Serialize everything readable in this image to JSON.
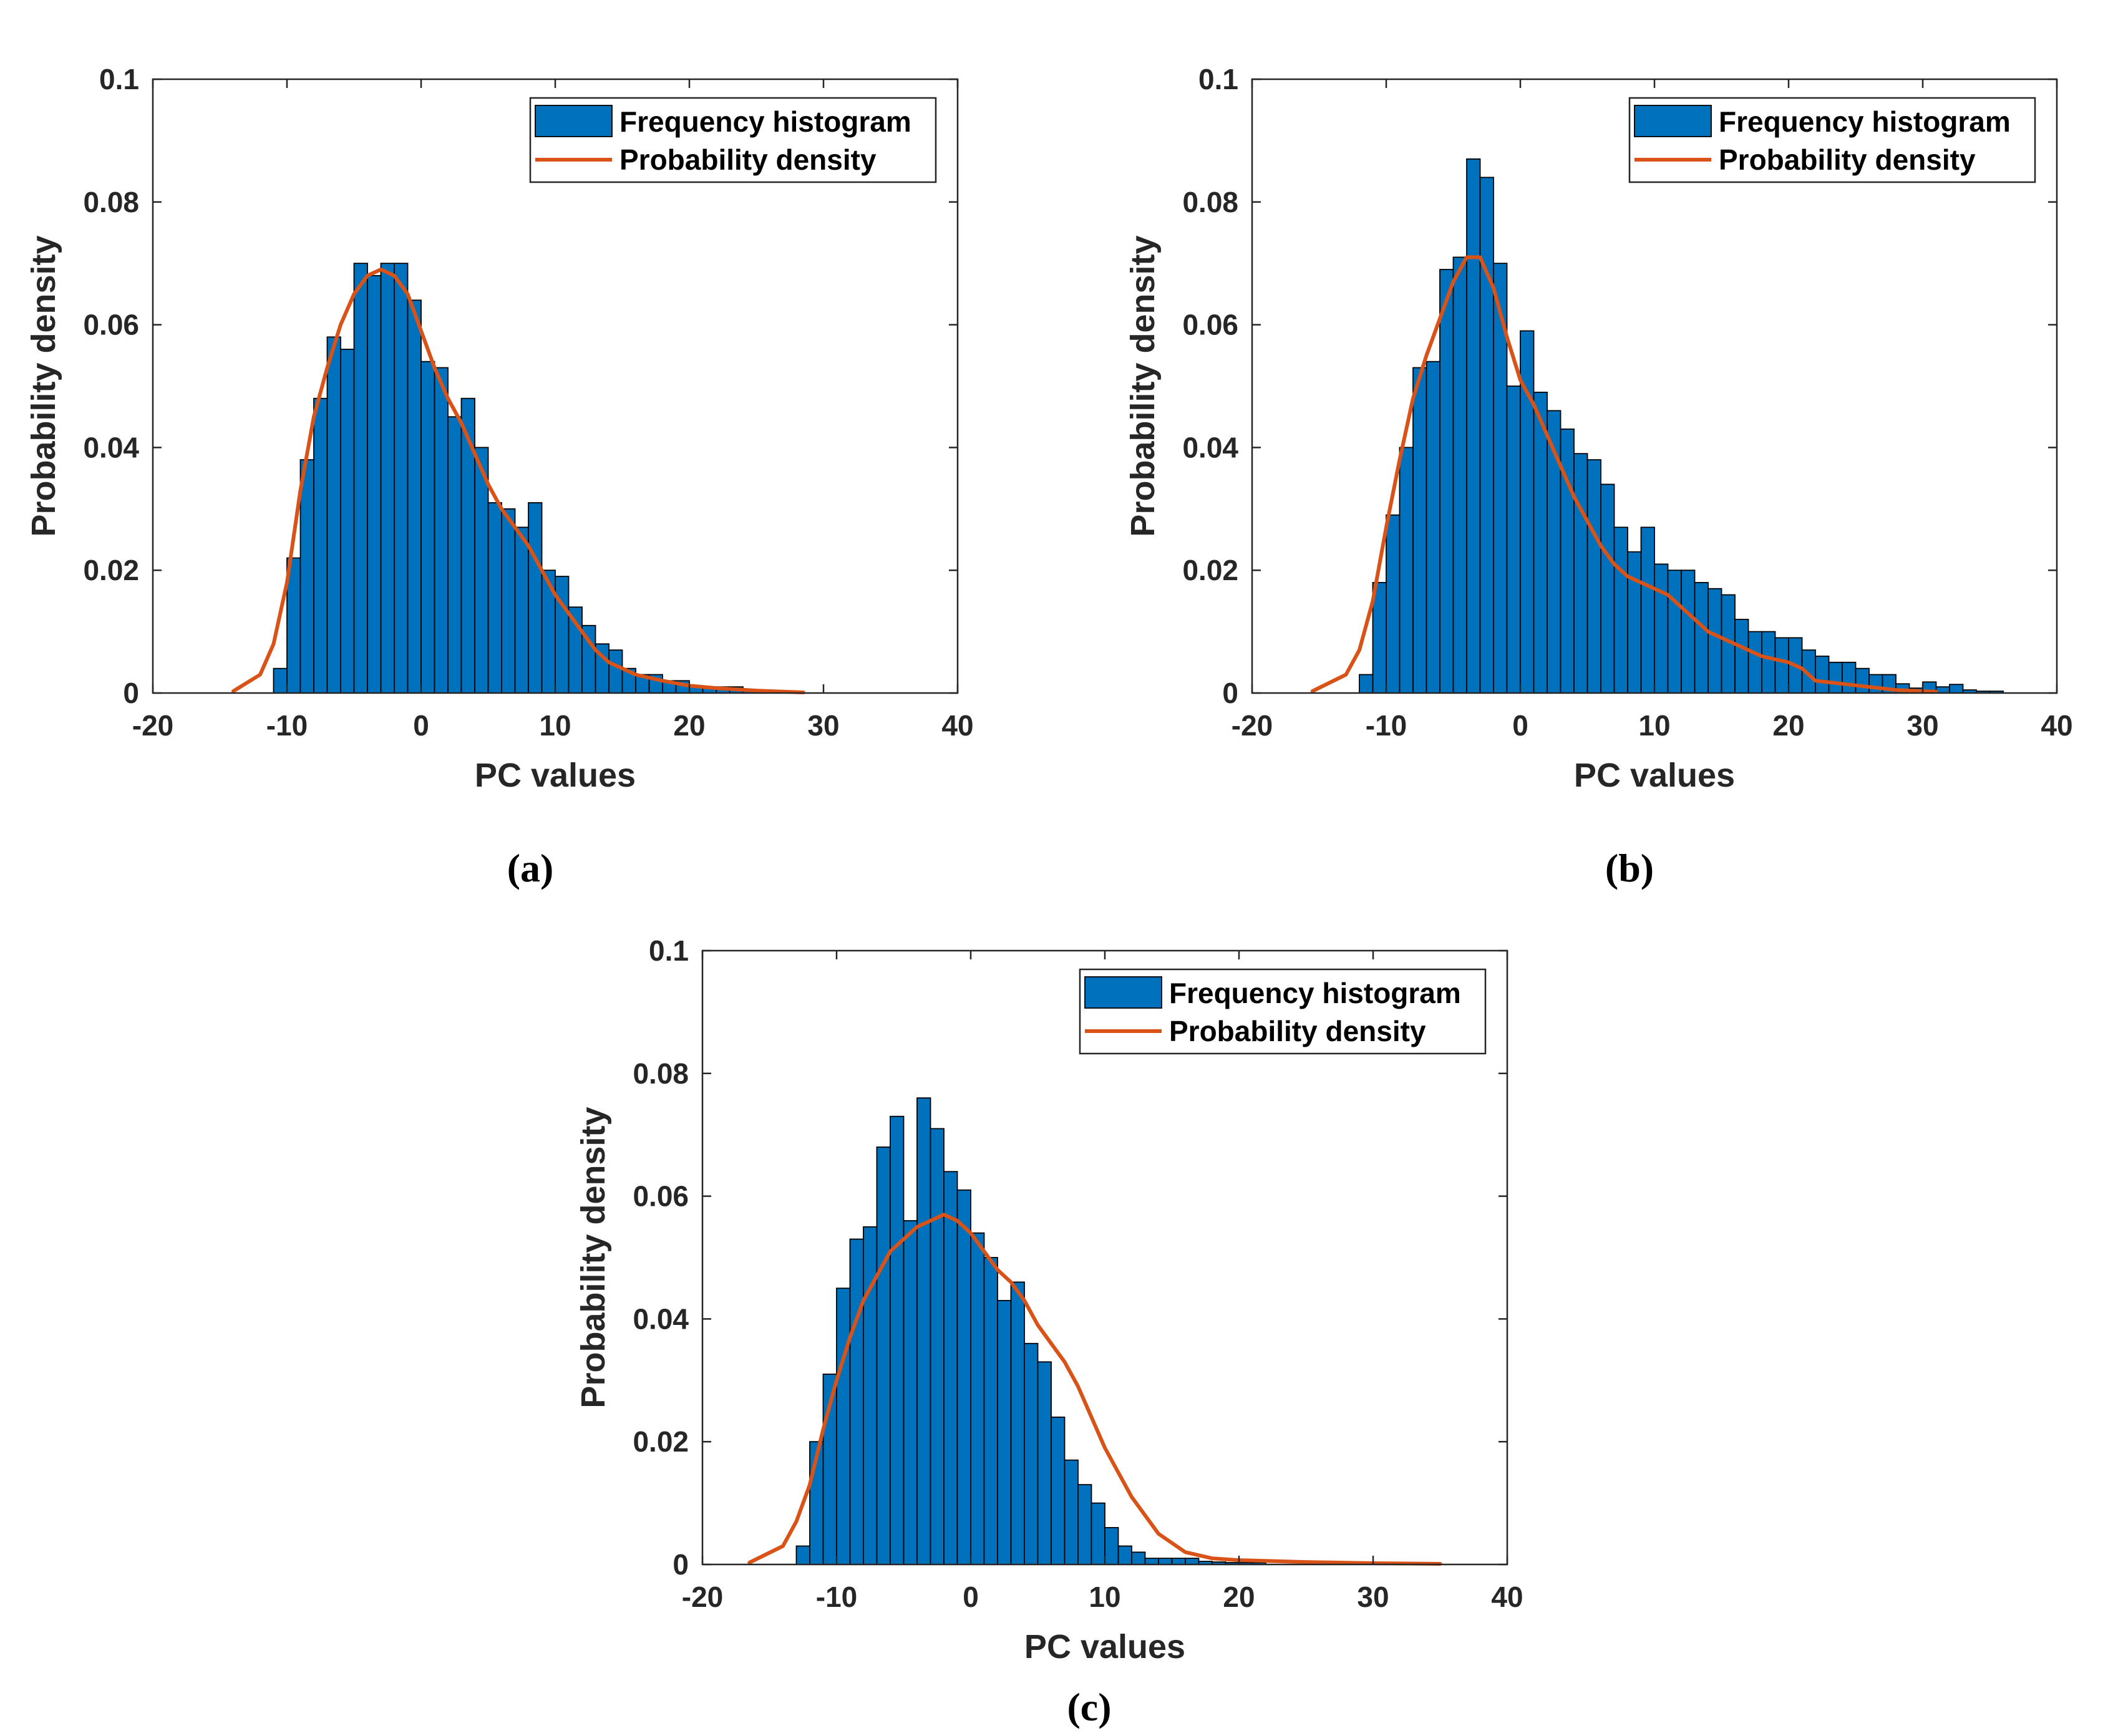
{
  "colors": {
    "bar": "#0072BD",
    "curve": "#D95319",
    "axis": "#262626"
  },
  "chart_data": [
    {
      "type": "bar",
      "panel_label": "(a)",
      "xlabel": "PC values",
      "ylabel": "Probability density",
      "xlim": [
        -20,
        40
      ],
      "ylim": [
        0,
        0.1
      ],
      "xticks": [
        "-20",
        "-10",
        "0",
        "10",
        "20",
        "30",
        "40"
      ],
      "yticks": [
        "0",
        "0.02",
        "0.04",
        "0.06",
        "0.08",
        "0.1"
      ],
      "legend": [
        "Frequency histogram",
        "Probability density"
      ],
      "legend_position": "top-right",
      "bin_start": -11,
      "bin_width": 1,
      "values": [
        0.004,
        0.022,
        0.038,
        0.048,
        0.058,
        0.056,
        0.07,
        0.068,
        0.07,
        0.07,
        0.064,
        0.054,
        0.053,
        0.045,
        0.048,
        0.04,
        0.031,
        0.03,
        0.027,
        0.031,
        0.02,
        0.019,
        0.014,
        0.011,
        0.008,
        0.007,
        0.004,
        0.003,
        0.003,
        0.002,
        0.002,
        0.001,
        0.001,
        0.001,
        0.001,
        0.0006,
        0.0003,
        0.0003
      ],
      "density": {
        "x": [
          -14,
          -12,
          -11,
          -10,
          -9,
          -8,
          -7,
          -6,
          -5,
          -4,
          -3,
          -2,
          -1,
          0,
          1,
          2,
          3,
          4,
          5,
          6,
          7,
          8,
          9,
          10,
          11,
          12,
          13,
          14,
          15,
          16,
          18,
          20,
          22,
          25,
          28.5
        ],
        "y": [
          0.0003,
          0.003,
          0.008,
          0.018,
          0.033,
          0.045,
          0.053,
          0.06,
          0.065,
          0.068,
          0.069,
          0.068,
          0.065,
          0.059,
          0.053,
          0.048,
          0.044,
          0.039,
          0.034,
          0.03,
          0.027,
          0.024,
          0.02,
          0.016,
          0.013,
          0.01,
          0.007,
          0.005,
          0.004,
          0.003,
          0.002,
          0.0012,
          0.0008,
          0.0004,
          0.0001
        ]
      }
    },
    {
      "type": "bar",
      "panel_label": "(b)",
      "xlabel": "PC values",
      "ylabel": "Probability density",
      "xlim": [
        -20,
        40
      ],
      "ylim": [
        0,
        0.1
      ],
      "xticks": [
        "-20",
        "-10",
        "0",
        "10",
        "20",
        "30",
        "40"
      ],
      "yticks": [
        "0",
        "0.02",
        "0.04",
        "0.06",
        "0.08",
        "0.1"
      ],
      "legend": [
        "Frequency histogram",
        "Probability density"
      ],
      "legend_position": "top-right",
      "bin_start": -12,
      "bin_width": 1,
      "values": [
        0.003,
        0.018,
        0.029,
        0.04,
        0.053,
        0.054,
        0.069,
        0.071,
        0.087,
        0.084,
        0.07,
        0.05,
        0.059,
        0.049,
        0.046,
        0.043,
        0.039,
        0.038,
        0.034,
        0.027,
        0.023,
        0.027,
        0.021,
        0.02,
        0.02,
        0.018,
        0.017,
        0.016,
        0.012,
        0.01,
        0.01,
        0.009,
        0.009,
        0.007,
        0.006,
        0.005,
        0.005,
        0.004,
        0.003,
        0.003,
        0.0015,
        0.0008,
        0.0018,
        0.001,
        0.0014,
        0.0005,
        0.0003,
        0.0003
      ],
      "density": {
        "x": [
          -15.5,
          -13,
          -12,
          -11,
          -10,
          -9,
          -8,
          -7,
          -6,
          -5,
          -4,
          -3,
          -2,
          -1,
          0,
          1,
          2,
          3,
          4,
          5,
          6,
          7,
          8,
          9,
          10,
          11,
          12,
          14,
          16,
          18,
          20,
          21,
          22,
          24,
          26,
          28,
          31
        ],
        "y": [
          0.0003,
          0.003,
          0.007,
          0.015,
          0.027,
          0.038,
          0.048,
          0.055,
          0.061,
          0.067,
          0.071,
          0.071,
          0.066,
          0.058,
          0.051,
          0.047,
          0.042,
          0.037,
          0.032,
          0.028,
          0.024,
          0.021,
          0.019,
          0.018,
          0.017,
          0.016,
          0.014,
          0.01,
          0.008,
          0.006,
          0.005,
          0.004,
          0.002,
          0.0015,
          0.001,
          0.0005,
          0.0002
        ]
      }
    },
    {
      "type": "bar",
      "panel_label": "(c)",
      "xlabel": "PC values",
      "ylabel": "Probability density",
      "xlim": [
        -20,
        40
      ],
      "ylim": [
        0,
        0.1
      ],
      "xticks": [
        "-20",
        "-10",
        "0",
        "10",
        "20",
        "30",
        "40"
      ],
      "yticks": [
        "0",
        "0.02",
        "0.04",
        "0.06",
        "0.08",
        "0.1"
      ],
      "legend": [
        "Frequency histogram",
        "Probability density"
      ],
      "legend_position": "top-right",
      "bin_start": -13,
      "bin_width": 1,
      "values": [
        0.003,
        0.02,
        0.031,
        0.045,
        0.053,
        0.055,
        0.068,
        0.073,
        0.056,
        0.076,
        0.071,
        0.064,
        0.061,
        0.054,
        0.05,
        0.043,
        0.046,
        0.036,
        0.033,
        0.024,
        0.017,
        0.013,
        0.01,
        0.006,
        0.003,
        0.002,
        0.001,
        0.001,
        0.001,
        0.001,
        0.0005,
        0.0004,
        0.0003,
        0.0003,
        0.0003
      ],
      "density": {
        "x": [
          -16.5,
          -14,
          -13,
          -12,
          -11,
          -10,
          -9,
          -8,
          -7,
          -6,
          -5,
          -4,
          -3,
          -2,
          -1,
          0,
          1,
          2,
          3,
          4,
          5,
          6,
          7,
          8,
          9,
          10,
          11,
          12,
          13,
          14,
          16,
          18,
          20,
          25,
          30,
          35
        ],
        "y": [
          0.0003,
          0.003,
          0.007,
          0.013,
          0.022,
          0.03,
          0.037,
          0.043,
          0.047,
          0.051,
          0.053,
          0.055,
          0.056,
          0.057,
          0.056,
          0.054,
          0.051,
          0.048,
          0.046,
          0.043,
          0.039,
          0.036,
          0.033,
          0.029,
          0.024,
          0.019,
          0.015,
          0.011,
          0.008,
          0.005,
          0.002,
          0.001,
          0.0007,
          0.0004,
          0.0002,
          0.0001
        ]
      }
    }
  ]
}
